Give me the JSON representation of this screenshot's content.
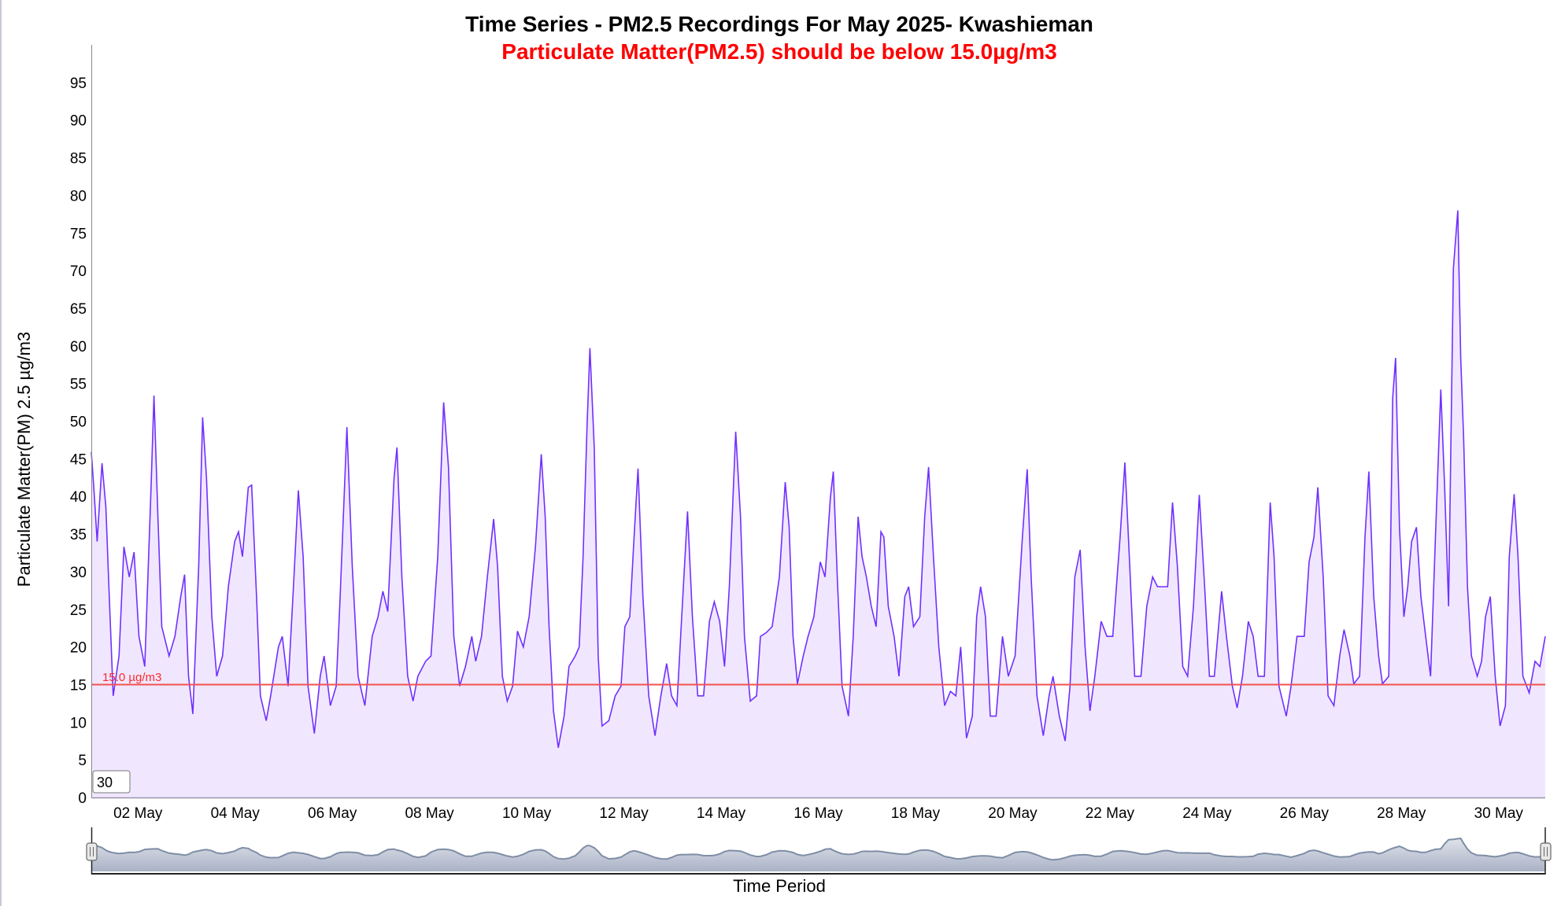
{
  "colors": {
    "series_line": "#7030ff",
    "series_fill": "#f0e7ff",
    "threshold_line": "#f25050",
    "subtitle": "#ff0000",
    "navigator_line": "#7f8ea6",
    "navigator_fill": "#c4cad8"
  },
  "range_input": {
    "value": "30"
  },
  "chart_data": {
    "type": "area",
    "title": "Time Series - PM2.5 Recordings For May 2025- Kwashieman",
    "subtitle": "Particulate Matter(PM2.5) should be below 15.0µg/m3",
    "xlabel": "Time Period",
    "ylabel": "Particulate Matter(PM) 2.5 µg/m3",
    "x_units": "day of May 2025",
    "xlim": [
      1.04,
      30.96
    ],
    "ylim": [
      0,
      100
    ],
    "yticks": [
      0,
      5,
      10,
      15,
      20,
      25,
      30,
      35,
      40,
      45,
      50,
      55,
      60,
      65,
      70,
      75,
      80,
      85,
      90,
      95
    ],
    "xticks": [
      {
        "day": 2,
        "label": "02 May"
      },
      {
        "day": 4,
        "label": "04 May"
      },
      {
        "day": 6,
        "label": "06 May"
      },
      {
        "day": 8,
        "label": "08 May"
      },
      {
        "day": 10,
        "label": "10 May"
      },
      {
        "day": 12,
        "label": "12 May"
      },
      {
        "day": 14,
        "label": "14 May"
      },
      {
        "day": 16,
        "label": "16 May"
      },
      {
        "day": 18,
        "label": "18 May"
      },
      {
        "day": 20,
        "label": "20 May"
      },
      {
        "day": 22,
        "label": "22 May"
      },
      {
        "day": 24,
        "label": "24 May"
      },
      {
        "day": 26,
        "label": "26 May"
      },
      {
        "day": 28,
        "label": "28 May"
      },
      {
        "day": 30,
        "label": "30 May"
      }
    ],
    "grid": false,
    "legend": "none",
    "threshold": {
      "value": 15.0,
      "label": "15.0 µg/m3"
    },
    "series": [
      {
        "name": "PM2.5",
        "points": [
          [
            1.04,
            45.9
          ],
          [
            1.1,
            40.3
          ],
          [
            1.16,
            34
          ],
          [
            1.26,
            44.4
          ],
          [
            1.34,
            38.6
          ],
          [
            1.41,
            26.7
          ],
          [
            1.49,
            13.5
          ],
          [
            1.61,
            18.8
          ],
          [
            1.71,
            33.3
          ],
          [
            1.82,
            29.3
          ],
          [
            1.92,
            32.6
          ],
          [
            2.02,
            21.4
          ],
          [
            2.14,
            17.4
          ],
          [
            2.27,
            41.2
          ],
          [
            2.33,
            53.4
          ],
          [
            2.41,
            37.3
          ],
          [
            2.49,
            22.7
          ],
          [
            2.64,
            18.8
          ],
          [
            2.76,
            21.4
          ],
          [
            2.88,
            26.7
          ],
          [
            2.96,
            29.6
          ],
          [
            3.04,
            16.1
          ],
          [
            3.13,
            11.1
          ],
          [
            3.25,
            30.7
          ],
          [
            3.33,
            50.5
          ],
          [
            3.41,
            42.5
          ],
          [
            3.52,
            24
          ],
          [
            3.62,
            16.1
          ],
          [
            3.74,
            18.8
          ],
          [
            3.86,
            28
          ],
          [
            3.99,
            34
          ],
          [
            4.07,
            35.3
          ],
          [
            4.15,
            32
          ],
          [
            4.27,
            41.2
          ],
          [
            4.34,
            41.5
          ],
          [
            4.44,
            26.7
          ],
          [
            4.52,
            13.5
          ],
          [
            4.64,
            10.2
          ],
          [
            4.73,
            13.5
          ],
          [
            4.89,
            20
          ],
          [
            4.97,
            21.4
          ],
          [
            5.09,
            14.8
          ],
          [
            5.2,
            28
          ],
          [
            5.3,
            40.8
          ],
          [
            5.4,
            32
          ],
          [
            5.5,
            14.8
          ],
          [
            5.63,
            8.5
          ],
          [
            5.75,
            16.1
          ],
          [
            5.83,
            18.8
          ],
          [
            5.96,
            12.2
          ],
          [
            6.08,
            14.8
          ],
          [
            6.16,
            26.7
          ],
          [
            6.3,
            49.2
          ],
          [
            6.41,
            30.7
          ],
          [
            6.53,
            16.1
          ],
          [
            6.67,
            12.2
          ],
          [
            6.82,
            21.4
          ],
          [
            6.94,
            24
          ],
          [
            7.04,
            27.4
          ],
          [
            7.14,
            24.7
          ],
          [
            7.27,
            42.5
          ],
          [
            7.33,
            46.5
          ],
          [
            7.43,
            29.3
          ],
          [
            7.55,
            16.1
          ],
          [
            7.66,
            12.8
          ],
          [
            7.76,
            16.1
          ],
          [
            7.92,
            18.1
          ],
          [
            8.03,
            18.8
          ],
          [
            8.17,
            32
          ],
          [
            8.29,
            52.5
          ],
          [
            8.39,
            43.9
          ],
          [
            8.5,
            21.4
          ],
          [
            8.62,
            14.8
          ],
          [
            8.74,
            17.4
          ],
          [
            8.87,
            21.4
          ],
          [
            8.95,
            18.1
          ],
          [
            9.07,
            21.4
          ],
          [
            9.19,
            29.3
          ],
          [
            9.32,
            37
          ],
          [
            9.4,
            30.7
          ],
          [
            9.5,
            16.1
          ],
          [
            9.6,
            12.8
          ],
          [
            9.71,
            14.8
          ],
          [
            9.81,
            22.1
          ],
          [
            9.93,
            20
          ],
          [
            10.05,
            24
          ],
          [
            10.18,
            33.3
          ],
          [
            10.3,
            45.6
          ],
          [
            10.38,
            37.3
          ],
          [
            10.46,
            22.7
          ],
          [
            10.55,
            11.5
          ],
          [
            10.65,
            6.6
          ],
          [
            10.77,
            10.8
          ],
          [
            10.87,
            17.4
          ],
          [
            11.0,
            18.8
          ],
          [
            11.08,
            20
          ],
          [
            11.16,
            32
          ],
          [
            11.24,
            49.2
          ],
          [
            11.3,
            59.7
          ],
          [
            11.39,
            46.5
          ],
          [
            11.47,
            18.8
          ],
          [
            11.55,
            9.5
          ],
          [
            11.69,
            10.2
          ],
          [
            11.82,
            13.5
          ],
          [
            11.94,
            14.8
          ],
          [
            12.02,
            22.7
          ],
          [
            12.12,
            24
          ],
          [
            12.21,
            34.6
          ],
          [
            12.29,
            43.7
          ],
          [
            12.39,
            26.7
          ],
          [
            12.51,
            13.5
          ],
          [
            12.64,
            8.2
          ],
          [
            12.76,
            13.5
          ],
          [
            12.88,
            17.8
          ],
          [
            12.98,
            13.5
          ],
          [
            13.09,
            12.2
          ],
          [
            13.19,
            24
          ],
          [
            13.31,
            38
          ],
          [
            13.41,
            24
          ],
          [
            13.52,
            13.5
          ],
          [
            13.64,
            13.5
          ],
          [
            13.76,
            23.4
          ],
          [
            13.86,
            26
          ],
          [
            13.97,
            23.4
          ],
          [
            14.07,
            17.4
          ],
          [
            14.17,
            28
          ],
          [
            14.3,
            48.6
          ],
          [
            14.4,
            37.3
          ],
          [
            14.48,
            21.4
          ],
          [
            14.6,
            12.8
          ],
          [
            14.73,
            13.5
          ],
          [
            14.81,
            21.4
          ],
          [
            14.93,
            21.9
          ],
          [
            15.05,
            22.7
          ],
          [
            15.2,
            29.3
          ],
          [
            15.32,
            41.9
          ],
          [
            15.4,
            35.9
          ],
          [
            15.48,
            21.4
          ],
          [
            15.57,
            15.1
          ],
          [
            15.69,
            18.8
          ],
          [
            15.79,
            21.4
          ],
          [
            15.91,
            24
          ],
          [
            16.04,
            31.3
          ],
          [
            16.14,
            29.3
          ],
          [
            16.25,
            39.9
          ],
          [
            16.31,
            43.3
          ],
          [
            16.39,
            29.3
          ],
          [
            16.49,
            14.8
          ],
          [
            16.62,
            10.8
          ],
          [
            16.72,
            21.4
          ],
          [
            16.82,
            37.3
          ],
          [
            16.9,
            32
          ],
          [
            16.99,
            29.3
          ],
          [
            17.09,
            25.4
          ],
          [
            17.19,
            22.7
          ],
          [
            17.29,
            35.3
          ],
          [
            17.35,
            34.6
          ],
          [
            17.44,
            25.4
          ],
          [
            17.56,
            21.4
          ],
          [
            17.66,
            16.1
          ],
          [
            17.78,
            26.7
          ],
          [
            17.86,
            28
          ],
          [
            17.96,
            22.7
          ],
          [
            18.09,
            24
          ],
          [
            18.19,
            37.3
          ],
          [
            18.27,
            43.9
          ],
          [
            18.37,
            32
          ],
          [
            18.48,
            20
          ],
          [
            18.6,
            12.2
          ],
          [
            18.72,
            14.1
          ],
          [
            18.83,
            13.5
          ],
          [
            18.93,
            20
          ],
          [
            19.05,
            7.9
          ],
          [
            19.17,
            10.8
          ],
          [
            19.26,
            24
          ],
          [
            19.34,
            28
          ],
          [
            19.44,
            24
          ],
          [
            19.54,
            10.8
          ],
          [
            19.66,
            10.8
          ],
          [
            19.79,
            21.4
          ],
          [
            19.91,
            16.1
          ],
          [
            20.05,
            18.8
          ],
          [
            20.2,
            34.6
          ],
          [
            20.3,
            43.6
          ],
          [
            20.38,
            29.3
          ],
          [
            20.5,
            13.5
          ],
          [
            20.63,
            8.2
          ],
          [
            20.75,
            13.5
          ],
          [
            20.83,
            16.1
          ],
          [
            20.96,
            10.8
          ],
          [
            21.08,
            7.5
          ],
          [
            21.18,
            14.8
          ],
          [
            21.28,
            29.3
          ],
          [
            21.39,
            32.9
          ],
          [
            21.49,
            20
          ],
          [
            21.59,
            11.5
          ],
          [
            21.69,
            16.1
          ],
          [
            21.82,
            23.4
          ],
          [
            21.94,
            21.4
          ],
          [
            22.06,
            21.4
          ],
          [
            22.21,
            34.6
          ],
          [
            22.31,
            44.5
          ],
          [
            22.41,
            30.7
          ],
          [
            22.51,
            16.1
          ],
          [
            22.64,
            16.1
          ],
          [
            22.76,
            25.4
          ],
          [
            22.88,
            29.3
          ],
          [
            22.98,
            28
          ],
          [
            23.09,
            28
          ],
          [
            23.19,
            28
          ],
          [
            23.29,
            39.2
          ],
          [
            23.39,
            30.7
          ],
          [
            23.5,
            17.4
          ],
          [
            23.6,
            16.1
          ],
          [
            23.72,
            25.4
          ],
          [
            23.84,
            40.2
          ],
          [
            23.95,
            28
          ],
          [
            24.05,
            16.1
          ],
          [
            24.15,
            16.1
          ],
          [
            24.3,
            27.4
          ],
          [
            24.4,
            21.4
          ],
          [
            24.52,
            14.8
          ],
          [
            24.62,
            11.9
          ],
          [
            24.73,
            16.1
          ],
          [
            24.85,
            23.4
          ],
          [
            24.95,
            21.4
          ],
          [
            25.05,
            16.1
          ],
          [
            25.18,
            16.1
          ],
          [
            25.3,
            39.2
          ],
          [
            25.38,
            32
          ],
          [
            25.48,
            14.8
          ],
          [
            25.63,
            10.8
          ],
          [
            25.73,
            14.8
          ],
          [
            25.85,
            21.4
          ],
          [
            26.0,
            21.4
          ],
          [
            26.1,
            31.3
          ],
          [
            26.2,
            34.6
          ],
          [
            26.28,
            41.2
          ],
          [
            26.39,
            29.3
          ],
          [
            26.49,
            13.5
          ],
          [
            26.61,
            12.2
          ],
          [
            26.73,
            18.8
          ],
          [
            26.82,
            22.3
          ],
          [
            26.94,
            18.8
          ],
          [
            27.02,
            15.1
          ],
          [
            27.14,
            16.1
          ],
          [
            27.25,
            34.6
          ],
          [
            27.33,
            43.3
          ],
          [
            27.43,
            26.7
          ],
          [
            27.53,
            18.8
          ],
          [
            27.61,
            15.1
          ],
          [
            27.74,
            16.1
          ],
          [
            27.82,
            53.1
          ],
          [
            27.88,
            58.4
          ],
          [
            27.96,
            35.9
          ],
          [
            28.05,
            24
          ],
          [
            28.13,
            28
          ],
          [
            28.21,
            34
          ],
          [
            28.31,
            35.9
          ],
          [
            28.4,
            26.7
          ],
          [
            28.5,
            21.4
          ],
          [
            28.6,
            16.1
          ],
          [
            28.7,
            34.6
          ],
          [
            28.81,
            54.2
          ],
          [
            28.89,
            41.2
          ],
          [
            28.97,
            25.4
          ],
          [
            29.07,
            70.3
          ],
          [
            29.16,
            78
          ],
          [
            29.22,
            58.4
          ],
          [
            29.28,
            47.8
          ],
          [
            29.36,
            28
          ],
          [
            29.44,
            18.8
          ],
          [
            29.56,
            16.1
          ],
          [
            29.65,
            18.1
          ],
          [
            29.73,
            24
          ],
          [
            29.83,
            26.7
          ],
          [
            29.93,
            16.1
          ],
          [
            30.03,
            9.5
          ],
          [
            30.14,
            12.2
          ],
          [
            30.22,
            32
          ],
          [
            30.32,
            40.3
          ],
          [
            30.4,
            32
          ],
          [
            30.5,
            16.1
          ],
          [
            30.63,
            13.9
          ],
          [
            30.75,
            18.1
          ],
          [
            30.85,
            17.4
          ],
          [
            30.96,
            21.4
          ]
        ]
      }
    ]
  }
}
